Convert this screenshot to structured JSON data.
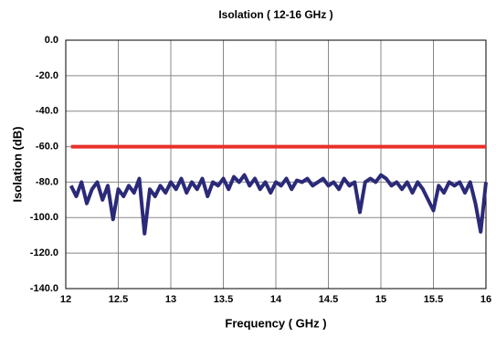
{
  "chart_data": {
    "type": "line",
    "title": "Isolation ( 12-16 GHz )",
    "x_label": "Frequency ( GHz )",
    "y_label": "Isolation (dB)",
    "xlim": [
      12,
      16
    ],
    "xticks": [
      12,
      12.5,
      13,
      13.5,
      14,
      14.5,
      15,
      15.5,
      16
    ],
    "ylim": [
      -140,
      0
    ],
    "yticks": [
      {
        "value": 0,
        "label": "0.0"
      },
      {
        "value": -20,
        "label": "-20.0"
      },
      {
        "value": -40,
        "label": "-40.0"
      },
      {
        "value": -60,
        "label": "-60.0"
      },
      {
        "value": -80,
        "label": "-80.0"
      },
      {
        "value": -100,
        "label": "-100.0"
      },
      {
        "value": -120,
        "label": "-120.0"
      },
      {
        "value": -140,
        "label": "-140.0"
      }
    ],
    "grid": true,
    "series": [
      {
        "color": "#e8302a",
        "x": [
          12.05,
          16
        ],
        "values": [
          -60,
          -60
        ]
      },
      {
        "color": "#2b2a78",
        "x": [
          12.05,
          12.1,
          12.15,
          12.2,
          12.25,
          12.3,
          12.35,
          12.4,
          12.45,
          12.5,
          12.55,
          12.6,
          12.65,
          12.7,
          12.75,
          12.8,
          12.85,
          12.9,
          12.95,
          13,
          13.05,
          13.1,
          13.15,
          13.2,
          13.25,
          13.3,
          13.35,
          13.4,
          13.45,
          13.5,
          13.55,
          13.6,
          13.65,
          13.7,
          13.75,
          13.8,
          13.85,
          13.9,
          13.95,
          14,
          14.05,
          14.1,
          14.15,
          14.2,
          14.25,
          14.3,
          14.35,
          14.4,
          14.45,
          14.5,
          14.55,
          14.6,
          14.65,
          14.7,
          14.75,
          14.8,
          14.85,
          14.9,
          14.95,
          15,
          15.05,
          15.1,
          15.15,
          15.2,
          15.25,
          15.3,
          15.35,
          15.4,
          15.45,
          15.5,
          15.55,
          15.6,
          15.65,
          15.7,
          15.75,
          15.8,
          15.85,
          15.9,
          15.95,
          16
        ],
        "values": [
          -82,
          -88,
          -80,
          -92,
          -84,
          -80,
          -90,
          -82,
          -101,
          -84,
          -88,
          -82,
          -86,
          -78,
          -109,
          -84,
          -88,
          -82,
          -86,
          -80,
          -84,
          -78,
          -86,
          -80,
          -84,
          -78,
          -88,
          -80,
          -82,
          -78,
          -84,
          -77,
          -80,
          -76,
          -82,
          -78,
          -84,
          -80,
          -86,
          -80,
          -82,
          -78,
          -84,
          -79,
          -80,
          -78,
          -82,
          -80,
          -78,
          -82,
          -80,
          -84,
          -78,
          -82,
          -80,
          -97,
          -80,
          -78,
          -80,
          -76,
          -78,
          -82,
          -80,
          -84,
          -80,
          -86,
          -80,
          -84,
          -90,
          -96,
          -82,
          -86,
          -80,
          -82,
          -80,
          -86,
          -80,
          -92,
          -108,
          -80
        ]
      }
    ]
  }
}
